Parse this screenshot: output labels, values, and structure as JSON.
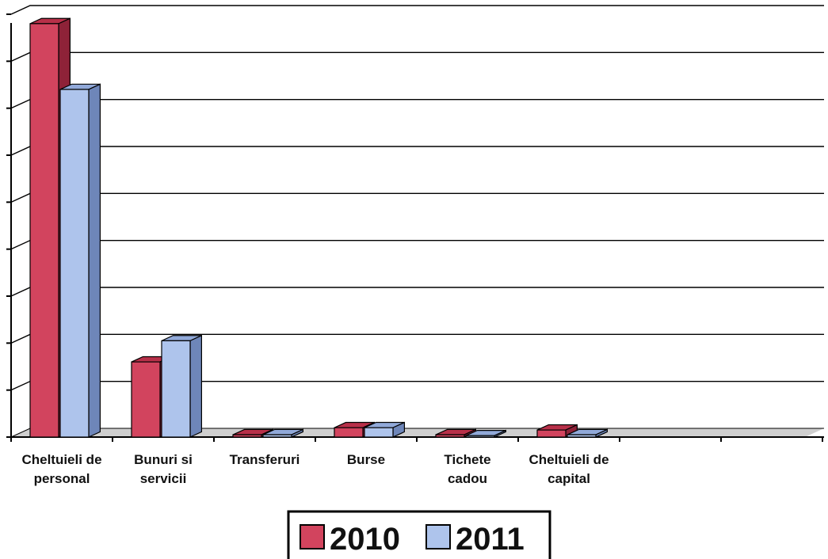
{
  "colors": {
    "series_2010": "#d2445e",
    "series_2010_top": "#b83049",
    "series_2010_side": "#8e2238",
    "series_2011": "#aec4ec",
    "series_2011_top": "#91a9d9",
    "series_2011_side": "#6e86b9",
    "gridline": "#000000",
    "wall": "#ffffff"
  },
  "chart_data": {
    "type": "bar",
    "categories": [
      [
        "Cheltuieli de",
        "personal"
      ],
      [
        "Bunuri si",
        "servicii"
      ],
      [
        "Transferuri"
      ],
      [
        "Burse"
      ],
      [
        "Tichete",
        "cadou"
      ],
      [
        "Cheltuieli de",
        "capital"
      ]
    ],
    "series": [
      {
        "name": "2010",
        "values": [
          8.8,
          1.6,
          0.05,
          0.2,
          0.05,
          0.15
        ]
      },
      {
        "name": "2011",
        "values": [
          7.4,
          2.05,
          0.05,
          0.2,
          0.03,
          0.05
        ]
      }
    ],
    "ylim": [
      0,
      9
    ],
    "grid": true,
    "legend": "bottom-center"
  }
}
